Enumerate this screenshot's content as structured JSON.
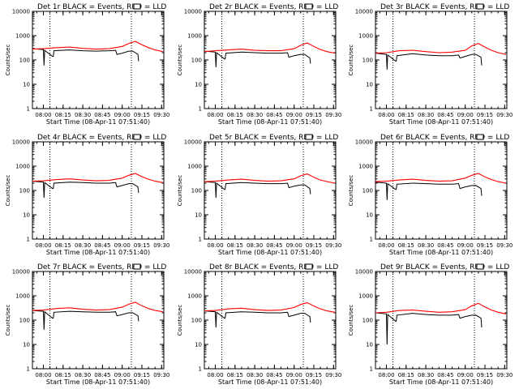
{
  "figure": {
    "background": "#ffffff",
    "events_color": "#000000",
    "lld_color": "#ff0000"
  },
  "chart_data": [
    {
      "type": "line",
      "title": "Det 1r BLACK = Events, RED = LLD",
      "xlabel": "Start Time (08-Apr-11 07:51:40)",
      "ylabel": "Counts/sec",
      "x_ticks": [
        "08:00",
        "08:15",
        "08:30",
        "08:45",
        "09:00",
        "09:15",
        "09:30"
      ],
      "y_ticks": [
        "1",
        "10",
        "100",
        "1000",
        "10000"
      ],
      "ylim": [
        1,
        10000
      ],
      "y_scale": "log",
      "xlim": [
        "07:51:40",
        "09:31:40"
      ],
      "vlines": [
        "08:05",
        "09:07"
      ],
      "series": [
        {
          "name": "Events",
          "x": [
            "07:51:40",
            "08:00",
            "08:00:30",
            "08:01",
            "08:07",
            "08:07:30",
            "08:08",
            "08:20",
            "08:30",
            "08:40",
            "08:50",
            "08:55",
            "08:56",
            "09:00",
            "09:05",
            "09:08",
            "09:12",
            "09:12:30"
          ],
          "y": [
            290,
            270,
            60,
            250,
            140,
            140,
            240,
            260,
            240,
            230,
            240,
            250,
            170,
            190,
            230,
            230,
            170,
            90
          ]
        },
        {
          "name": "LLD",
          "x": [
            "07:51:40",
            "08:00",
            "08:10",
            "08:20",
            "08:30",
            "08:40",
            "08:50",
            "09:00",
            "09:05",
            "09:10",
            "09:15",
            "09:20",
            "09:25",
            "09:31"
          ],
          "y": [
            280,
            290,
            320,
            340,
            300,
            280,
            290,
            360,
            480,
            580,
            420,
            320,
            260,
            220
          ]
        }
      ]
    },
    {
      "type": "line",
      "title": "Det 2r BLACK = Events, RED = LLD",
      "xlabel": "Start Time (08-Apr-11 07:51:40)",
      "ylabel": "Counts/sec",
      "x_ticks": [
        "08:00",
        "08:15",
        "08:30",
        "08:45",
        "09:00",
        "09:15",
        "09:30"
      ],
      "y_ticks": [
        "1",
        "10",
        "100",
        "1000",
        "10000"
      ],
      "ylim": [
        1,
        10000
      ],
      "y_scale": "log",
      "xlim": [
        "07:51:40",
        "09:31:40"
      ],
      "vlines": [
        "08:05",
        "09:07"
      ],
      "series": [
        {
          "name": "Events",
          "x": [
            "07:51:40",
            "08:00",
            "08:00:30",
            "08:01",
            "08:07",
            "08:07:30",
            "08:08",
            "08:20",
            "08:30",
            "08:40",
            "08:50",
            "08:55",
            "08:56",
            "09:00",
            "09:05",
            "09:08",
            "09:12",
            "09:12:30"
          ],
          "y": [
            230,
            210,
            50,
            200,
            110,
            110,
            190,
            210,
            200,
            190,
            190,
            200,
            130,
            150,
            170,
            170,
            120,
            70
          ]
        },
        {
          "name": "LLD",
          "x": [
            "07:51:40",
            "08:00",
            "08:10",
            "08:20",
            "08:30",
            "08:40",
            "08:50",
            "09:00",
            "09:05",
            "09:10",
            "09:15",
            "09:20",
            "09:25",
            "09:31"
          ],
          "y": [
            220,
            240,
            260,
            280,
            250,
            240,
            240,
            290,
            400,
            500,
            360,
            270,
            220,
            190
          ]
        }
      ]
    },
    {
      "type": "line",
      "title": "Det 3r BLACK = Events, RED = LLD",
      "xlabel": "Start Time (08-Apr-11 07:51:40)",
      "ylabel": "Counts/sec",
      "x_ticks": [
        "08:00",
        "08:15",
        "08:30",
        "08:45",
        "09:00",
        "09:15",
        "09:30"
      ],
      "y_ticks": [
        "1",
        "10",
        "100",
        "1000",
        "10000"
      ],
      "ylim": [
        1,
        10000
      ],
      "y_scale": "log",
      "xlim": [
        "07:51:40",
        "09:31:40"
      ],
      "vlines": [
        "08:05",
        "09:07"
      ],
      "series": [
        {
          "name": "Events",
          "x": [
            "07:51:40",
            "08:00",
            "08:00:30",
            "08:01",
            "08:07",
            "08:07:30",
            "08:08",
            "08:20",
            "08:30",
            "08:40",
            "08:50",
            "08:55",
            "08:56",
            "09:00",
            "09:05",
            "09:08",
            "09:12",
            "09:12:30"
          ],
          "y": [
            190,
            170,
            40,
            160,
            90,
            90,
            150,
            180,
            160,
            150,
            150,
            160,
            120,
            140,
            170,
            170,
            130,
            60
          ]
        },
        {
          "name": "LLD",
          "x": [
            "07:51:40",
            "08:00",
            "08:10",
            "08:20",
            "08:30",
            "08:40",
            "08:50",
            "09:00",
            "09:05",
            "09:10",
            "09:15",
            "09:20",
            "09:25",
            "09:31"
          ],
          "y": [
            190,
            200,
            240,
            250,
            220,
            200,
            210,
            250,
            380,
            480,
            340,
            250,
            200,
            170
          ]
        }
      ]
    },
    {
      "type": "line",
      "title": "Det 4r BLACK = Events, RED = LLD",
      "xlabel": "Start Time (08-Apr-11 07:51:40)",
      "ylabel": "Counts/sec",
      "x_ticks": [
        "08:00",
        "08:15",
        "08:30",
        "08:45",
        "09:00",
        "09:15",
        "09:30"
      ],
      "y_ticks": [
        "1",
        "10",
        "100",
        "1000",
        "10000"
      ],
      "ylim": [
        1,
        10000
      ],
      "y_scale": "log",
      "xlim": [
        "07:51:40",
        "09:31:40"
      ],
      "vlines": [
        "08:05",
        "09:07"
      ],
      "series": [
        {
          "name": "Events",
          "x": [
            "07:51:40",
            "08:00",
            "08:00:30",
            "08:01",
            "08:07",
            "08:07:30",
            "08:08",
            "08:20",
            "08:30",
            "08:40",
            "08:50",
            "08:55",
            "08:56",
            "09:00",
            "09:05",
            "09:08",
            "09:12",
            "09:12:30"
          ],
          "y": [
            240,
            220,
            50,
            210,
            120,
            120,
            200,
            220,
            210,
            200,
            200,
            210,
            140,
            160,
            190,
            190,
            140,
            80
          ]
        },
        {
          "name": "LLD",
          "x": [
            "07:51:40",
            "08:00",
            "08:10",
            "08:20",
            "08:30",
            "08:40",
            "08:50",
            "09:00",
            "09:05",
            "09:10",
            "09:15",
            "09:20",
            "09:25",
            "09:31"
          ],
          "y": [
            240,
            250,
            280,
            300,
            270,
            250,
            260,
            320,
            420,
            500,
            370,
            290,
            240,
            210
          ]
        }
      ]
    },
    {
      "type": "line",
      "title": "Det 5r BLACK = Events, RED = LLD",
      "xlabel": "Start Time (08-Apr-11 07:51:40)",
      "ylabel": "Counts/sec",
      "x_ticks": [
        "08:00",
        "08:15",
        "08:30",
        "08:45",
        "09:00",
        "09:15",
        "09:30"
      ],
      "y_ticks": [
        "1",
        "10",
        "100",
        "1000",
        "10000"
      ],
      "ylim": [
        1,
        10000
      ],
      "y_scale": "log",
      "xlim": [
        "07:51:40",
        "09:31:40"
      ],
      "vlines": [
        "08:05",
        "09:07"
      ],
      "series": [
        {
          "name": "Events",
          "x": [
            "07:51:40",
            "08:00",
            "08:00:30",
            "08:01",
            "08:07",
            "08:07:30",
            "08:08",
            "08:20",
            "08:30",
            "08:40",
            "08:50",
            "08:55",
            "08:56",
            "09:00",
            "09:05",
            "09:08",
            "09:12",
            "09:12:30"
          ],
          "y": [
            230,
            210,
            50,
            200,
            110,
            110,
            190,
            210,
            200,
            190,
            190,
            200,
            130,
            150,
            170,
            170,
            120,
            70
          ]
        },
        {
          "name": "LLD",
          "x": [
            "07:51:40",
            "08:00",
            "08:10",
            "08:20",
            "08:30",
            "08:40",
            "08:50",
            "09:00",
            "09:05",
            "09:10",
            "09:15",
            "09:20",
            "09:25",
            "09:31"
          ],
          "y": [
            230,
            240,
            270,
            290,
            260,
            240,
            250,
            300,
            400,
            480,
            350,
            270,
            230,
            200
          ]
        }
      ]
    },
    {
      "type": "line",
      "title": "Det 6r BLACK = Events, RED = LLD",
      "xlabel": "Start Time (08-Apr-11 07:51:40)",
      "ylabel": "Counts/sec",
      "x_ticks": [
        "08:00",
        "08:15",
        "08:30",
        "08:45",
        "09:00",
        "09:15",
        "09:30"
      ],
      "y_ticks": [
        "1",
        "10",
        "100",
        "1000",
        "10000"
      ],
      "ylim": [
        1,
        10000
      ],
      "y_scale": "log",
      "xlim": [
        "07:51:40",
        "09:31:40"
      ],
      "vlines": [
        "08:05",
        "09:07"
      ],
      "series": [
        {
          "name": "Events",
          "x": [
            "07:51:40",
            "08:00",
            "08:00:30",
            "08:01",
            "08:07",
            "08:07:30",
            "08:08",
            "08:20",
            "08:30",
            "08:40",
            "08:50",
            "08:55",
            "08:56",
            "09:00",
            "09:05",
            "09:08",
            "09:12",
            "09:12:30"
          ],
          "y": [
            220,
            200,
            40,
            190,
            110,
            110,
            180,
            200,
            190,
            180,
            180,
            190,
            120,
            140,
            160,
            160,
            120,
            60
          ]
        },
        {
          "name": "LLD",
          "x": [
            "07:51:40",
            "08:00",
            "08:10",
            "08:20",
            "08:30",
            "08:40",
            "08:50",
            "09:00",
            "09:05",
            "09:10",
            "09:15",
            "09:20",
            "09:25",
            "09:31"
          ],
          "y": [
            230,
            240,
            270,
            290,
            260,
            240,
            250,
            320,
            420,
            500,
            360,
            280,
            230,
            200
          ]
        }
      ]
    },
    {
      "type": "line",
      "title": "Det 7r BLACK = Events, RED = LLD",
      "xlabel": "Start Time (08-Apr-11 07:51:40)",
      "ylabel": "Counts/sec",
      "x_ticks": [
        "08:00",
        "08:15",
        "08:30",
        "08:45",
        "09:00",
        "09:15",
        "09:30"
      ],
      "y_ticks": [
        "1",
        "10",
        "100",
        "1000",
        "10000"
      ],
      "ylim": [
        1,
        10000
      ],
      "y_scale": "log",
      "xlim": [
        "07:51:40",
        "09:31:40"
      ],
      "vlines": [
        "08:05",
        "09:07"
      ],
      "series": [
        {
          "name": "Events",
          "x": [
            "07:51:40",
            "08:00",
            "08:00:30",
            "08:01",
            "08:07",
            "08:07:30",
            "08:08",
            "08:20",
            "08:30",
            "08:40",
            "08:50",
            "08:55",
            "08:56",
            "09:00",
            "09:05",
            "09:08",
            "09:12",
            "09:12:30"
          ],
          "y": [
            250,
            230,
            40,
            220,
            120,
            120,
            210,
            230,
            220,
            210,
            210,
            220,
            150,
            170,
            200,
            200,
            150,
            90
          ]
        },
        {
          "name": "LLD",
          "x": [
            "07:51:40",
            "08:00",
            "08:10",
            "08:20",
            "08:30",
            "08:40",
            "08:50",
            "09:00",
            "09:05",
            "09:10",
            "09:15",
            "09:20",
            "09:25",
            "09:31"
          ],
          "y": [
            250,
            260,
            300,
            320,
            280,
            260,
            270,
            340,
            450,
            540,
            390,
            300,
            250,
            220
          ]
        }
      ]
    },
    {
      "type": "line",
      "title": "Det 8r BLACK = Events, RED = LLD",
      "xlabel": "Start Time (08-Apr-11 07:51:40)",
      "ylabel": "Counts/sec",
      "x_ticks": [
        "08:00",
        "08:15",
        "08:30",
        "08:45",
        "09:00",
        "09:15",
        "09:30"
      ],
      "y_ticks": [
        "1",
        "10",
        "100",
        "1000",
        "10000"
      ],
      "ylim": [
        1,
        10000
      ],
      "y_scale": "log",
      "xlim": [
        "07:51:40",
        "09:31:40"
      ],
      "vlines": [
        "08:05",
        "09:07"
      ],
      "series": [
        {
          "name": "Events",
          "x": [
            "07:51:40",
            "08:00",
            "08:00:30",
            "08:01",
            "08:07",
            "08:07:30",
            "08:08",
            "08:20",
            "08:30",
            "08:40",
            "08:50",
            "08:55",
            "08:56",
            "09:00",
            "09:05",
            "09:08",
            "09:12",
            "09:12:30"
          ],
          "y": [
            240,
            220,
            50,
            210,
            120,
            120,
            200,
            220,
            210,
            200,
            200,
            210,
            140,
            160,
            190,
            190,
            140,
            80
          ]
        },
        {
          "name": "LLD",
          "x": [
            "07:51:40",
            "08:00",
            "08:10",
            "08:20",
            "08:30",
            "08:40",
            "08:50",
            "09:00",
            "09:05",
            "09:10",
            "09:15",
            "09:20",
            "09:25",
            "09:31"
          ],
          "y": [
            240,
            250,
            290,
            310,
            270,
            250,
            260,
            330,
            440,
            520,
            380,
            290,
            240,
            210
          ]
        }
      ]
    },
    {
      "type": "line",
      "title": "Det 9r BLACK = Events, RED = LLD",
      "xlabel": "Start Time (08-Apr-11 07:51:40)",
      "ylabel": "Counts/sec",
      "x_ticks": [
        "08:00",
        "08:15",
        "08:30",
        "08:45",
        "09:00",
        "09:15",
        "09:30"
      ],
      "y_ticks": [
        "1",
        "10",
        "100",
        "1000",
        "10000"
      ],
      "ylim": [
        1,
        10000
      ],
      "y_scale": "log",
      "xlim": [
        "07:51:40",
        "09:31:40"
      ],
      "vlines": [
        "08:05",
        "09:07"
      ],
      "series": [
        {
          "name": "Events",
          "x": [
            "07:51:40",
            "08:00",
            "08:00:30",
            "08:01",
            "08:07",
            "08:07:30",
            "08:08",
            "08:20",
            "08:30",
            "08:40",
            "08:50",
            "08:55",
            "08:56",
            "09:00",
            "09:05",
            "09:08",
            "09:12",
            "09:12:30"
          ],
          "y": [
            200,
            180,
            10,
            170,
            90,
            90,
            160,
            190,
            170,
            160,
            160,
            170,
            120,
            140,
            160,
            160,
            120,
            50
          ]
        },
        {
          "name": "LLD",
          "x": [
            "07:51:40",
            "08:00",
            "08:10",
            "08:20",
            "08:30",
            "08:40",
            "08:50",
            "09:00",
            "09:05",
            "09:10",
            "09:15",
            "09:20",
            "09:25",
            "09:31"
          ],
          "y": [
            200,
            210,
            250,
            260,
            230,
            210,
            220,
            270,
            390,
            490,
            350,
            260,
            210,
            180
          ]
        }
      ]
    }
  ]
}
